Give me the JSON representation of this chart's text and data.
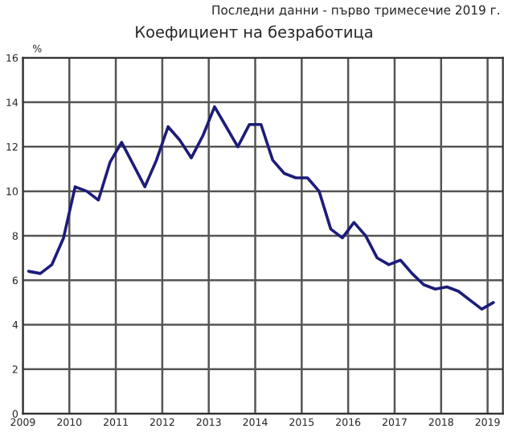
{
  "chart_data": {
    "type": "line",
    "title": "Коефициент на безработица",
    "subtitle": "Последни данни - първо тримесечие 2019 г.",
    "ylabel": "%",
    "x": [
      2009.125,
      2009.375,
      2009.625,
      2009.875,
      2010.125,
      2010.375,
      2010.625,
      2010.875,
      2011.125,
      2011.375,
      2011.625,
      2011.875,
      2012.125,
      2012.375,
      2012.625,
      2012.875,
      2013.125,
      2013.375,
      2013.625,
      2013.875,
      2014.125,
      2014.375,
      2014.625,
      2014.875,
      2015.125,
      2015.375,
      2015.625,
      2015.875,
      2016.125,
      2016.375,
      2016.625,
      2016.875,
      2017.125,
      2017.375,
      2017.625,
      2017.875,
      2018.125,
      2018.375,
      2018.625,
      2018.875,
      2019.125
    ],
    "series": [
      {
        "color": "#1c1c7a",
        "values": [
          6.4,
          6.3,
          6.7,
          7.9,
          10.2,
          10.0,
          9.6,
          11.3,
          12.2,
          11.2,
          10.2,
          11.4,
          12.9,
          12.3,
          11.5,
          12.5,
          13.8,
          12.9,
          12.0,
          13.0,
          13.0,
          11.4,
          10.8,
          10.6,
          10.6,
          10.0,
          8.3,
          7.9,
          8.6,
          8.0,
          7.0,
          6.7,
          6.9,
          6.3,
          5.8,
          5.6,
          5.7,
          5.5,
          5.1,
          4.7,
          5.0
        ]
      }
    ],
    "xlim": [
      2009,
      2019.33
    ],
    "xticks": [
      2009,
      2010,
      2011,
      2012,
      2013,
      2014,
      2015,
      2016,
      2017,
      2018,
      2019
    ],
    "ylim": [
      0,
      16
    ],
    "yticks": [
      0,
      2,
      4,
      6,
      8,
      10,
      12,
      14,
      16
    ],
    "grid": true,
    "legend": false,
    "marker": "none",
    "line_style": "solid"
  }
}
